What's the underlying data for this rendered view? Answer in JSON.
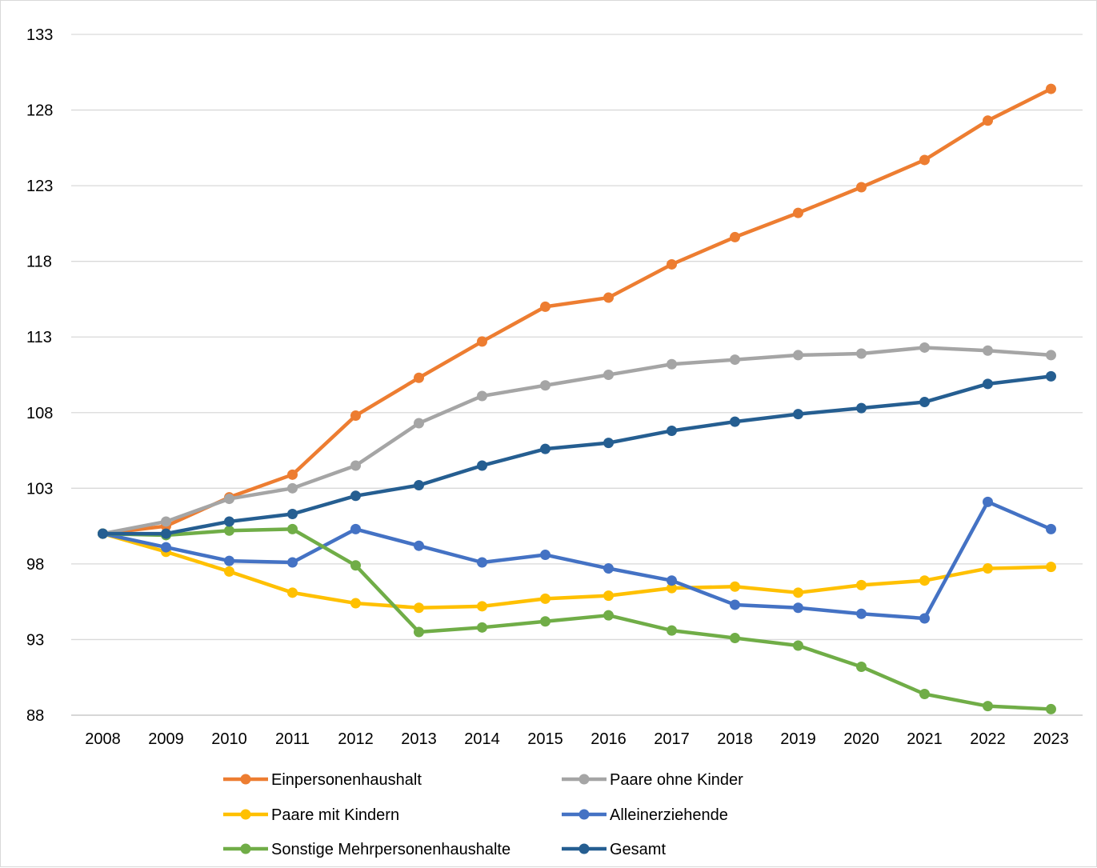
{
  "chart_data": {
    "type": "line",
    "title": "",
    "xlabel": "",
    "ylabel": "",
    "x": [
      "2008",
      "2009",
      "2010",
      "2011",
      "2012",
      "2013",
      "2014",
      "2015",
      "2016",
      "2017",
      "2018",
      "2019",
      "2020",
      "2021",
      "2022",
      "2023"
    ],
    "ylim": [
      88,
      133
    ],
    "yticks": [
      "133",
      "128",
      "123",
      "118",
      "113",
      "108",
      "103",
      "98",
      "93",
      "88"
    ],
    "grid": "horizontal",
    "legend_position": "bottom",
    "series": [
      {
        "name": "Einpersonenhaushalt",
        "color": "#ED7D31",
        "values": [
          100.0,
          100.5,
          102.4,
          103.9,
          107.8,
          110.3,
          112.7,
          115.0,
          115.6,
          117.8,
          119.6,
          121.2,
          122.9,
          124.7,
          127.3,
          129.4
        ]
      },
      {
        "name": "Paare ohne Kinder",
        "color": "#A5A5A5",
        "values": [
          100.0,
          100.8,
          102.3,
          103.0,
          104.5,
          107.3,
          109.1,
          109.8,
          110.5,
          111.2,
          111.5,
          111.8,
          111.9,
          112.3,
          112.1,
          111.8
        ]
      },
      {
        "name": "Paare mit Kindern",
        "color": "#FFC000",
        "values": [
          100.0,
          98.8,
          97.5,
          96.1,
          95.4,
          95.1,
          95.2,
          95.7,
          95.9,
          96.4,
          96.5,
          96.1,
          96.6,
          96.9,
          97.7,
          97.8
        ]
      },
      {
        "name": "Alleinerziehende",
        "color": "#4472C4",
        "values": [
          100.0,
          99.1,
          98.2,
          98.1,
          100.3,
          99.2,
          98.1,
          98.6,
          97.7,
          96.9,
          95.3,
          95.1,
          94.7,
          94.4,
          102.1,
          100.3
        ]
      },
      {
        "name": "Sonstige Mehrpersonenhaushalte",
        "color": "#70AD47",
        "values": [
          100.0,
          99.9,
          100.2,
          100.3,
          97.9,
          93.5,
          93.8,
          94.2,
          94.6,
          93.6,
          93.1,
          92.6,
          91.2,
          89.4,
          88.6,
          88.4
        ]
      },
      {
        "name": "Gesamt",
        "color": "#255E91",
        "values": [
          100.0,
          100.0,
          100.8,
          101.3,
          102.5,
          103.2,
          104.5,
          105.6,
          106.0,
          106.8,
          107.4,
          107.9,
          108.3,
          108.7,
          109.9,
          110.4
        ]
      }
    ]
  }
}
